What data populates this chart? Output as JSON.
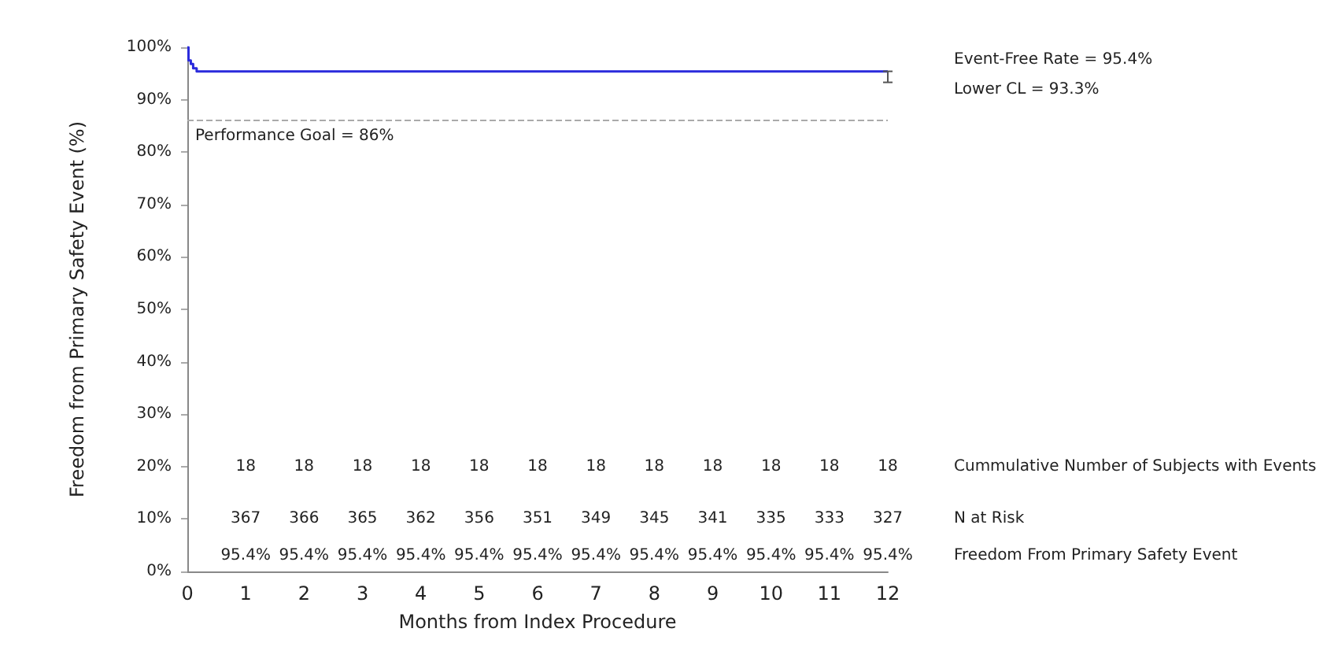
{
  "chart_data": {
    "type": "step",
    "xlabel": "Months from Index Procedure",
    "ylabel": "Freedom from Primary Safety Event (%)",
    "x": [
      0,
      0.02,
      0.06,
      0.1,
      0.16,
      12
    ],
    "series": [
      {
        "color": "#2b2bdc",
        "values": [
          100,
          97.5,
          96.8,
          96,
          95.4,
          95.4
        ],
        "errors": [
          null,
          null,
          null,
          null,
          null,
          [
            93.3,
            95.4
          ]
        ]
      }
    ],
    "xlim": [
      0,
      12
    ],
    "xticks": [
      0,
      1,
      2,
      3,
      4,
      5,
      6,
      7,
      8,
      9,
      10,
      11,
      12
    ],
    "ylim": [
      0,
      100
    ],
    "yticks": [
      {
        "value": 0,
        "label": "0%"
      },
      {
        "value": 10,
        "label": "10%"
      },
      {
        "value": 20,
        "label": "20%"
      },
      {
        "value": 30,
        "label": "30%"
      },
      {
        "value": 40,
        "label": "40%"
      },
      {
        "value": 50,
        "label": "50%"
      },
      {
        "value": 60,
        "label": "60%"
      },
      {
        "value": 70,
        "label": "70%"
      },
      {
        "value": 80,
        "label": "80%"
      },
      {
        "value": 90,
        "label": "90%"
      },
      {
        "value": 100,
        "label": "100%"
      }
    ],
    "grid": false,
    "marker": "none",
    "line_style": "solid",
    "ref_lines": [
      {
        "axis": "y",
        "value": 86,
        "label": "Performance Goal = 86%",
        "color": "#aaaaaa",
        "line_style": "dashed"
      }
    ],
    "annotations": [
      "Event-Free Rate = 95.4%",
      "Lower CL = 93.3%",
      "Cummulative Number of Subjects with Events",
      "N at Risk",
      "Freedom From Primary Safety Event",
      "18",
      "18",
      "18",
      "18",
      "18",
      "18",
      "18",
      "18",
      "18",
      "18",
      "18",
      "18",
      "367",
      "366",
      "365",
      "362",
      "356",
      "351",
      "349",
      "345",
      "341",
      "335",
      "333",
      "327",
      "95.4%",
      "95.4%",
      "95.4%",
      "95.4%",
      "95.4%",
      "95.4%",
      "95.4%",
      "95.4%",
      "95.4%",
      "95.4%",
      "95.4%",
      "95.4%"
    ]
  }
}
